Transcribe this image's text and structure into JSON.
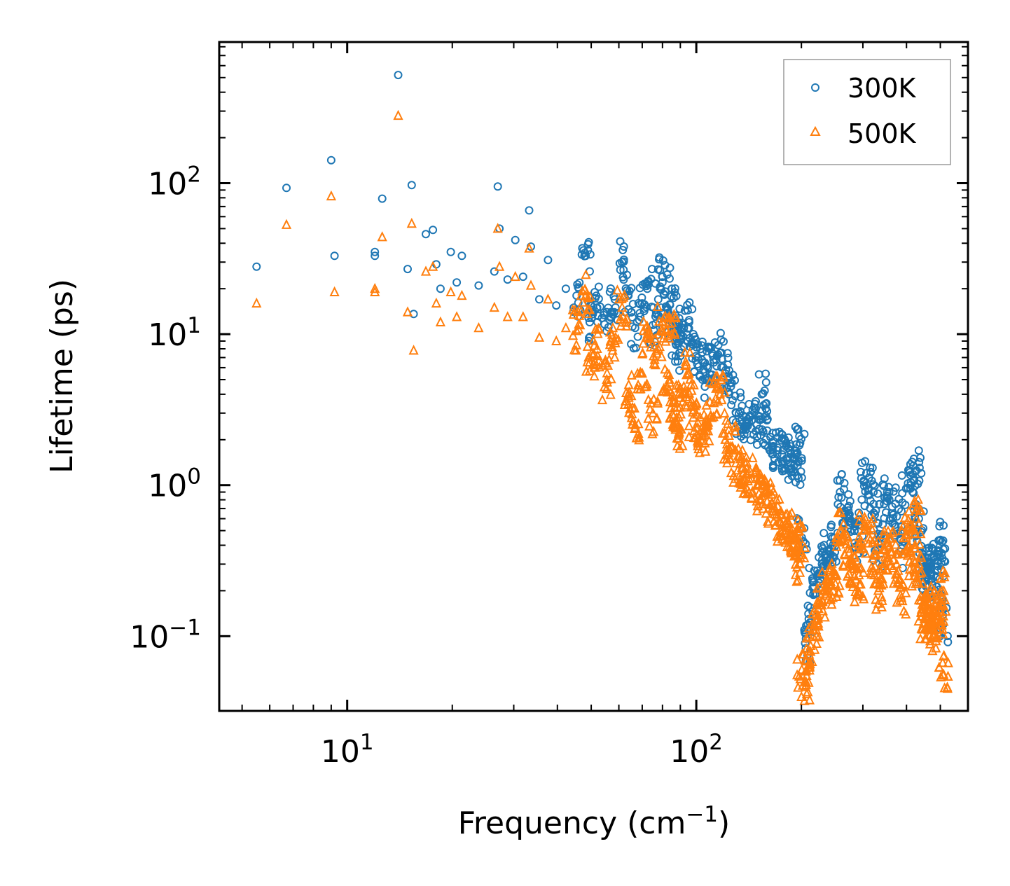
{
  "chart_data": {
    "type": "scatter",
    "title": "",
    "xlabel": "Frequency (cm",
    "xlabel_sup": "−1",
    "xlabel_suffix": ")",
    "ylabel": "Lifetime (ps)",
    "xscale": "log",
    "yscale": "log",
    "xlim": [
      4.3,
      600
    ],
    "ylim": [
      0.032,
      860
    ],
    "legend_position": "top-right",
    "x_ticks": [
      {
        "value": 10,
        "base": "10",
        "exp": "1"
      },
      {
        "value": 100,
        "base": "10",
        "exp": "2"
      }
    ],
    "y_ticks": [
      {
        "value": 0.1,
        "base": "10",
        "exp": "−1"
      },
      {
        "value": 1,
        "base": "10",
        "exp": "0"
      },
      {
        "value": 10,
        "base": "10",
        "exp": "1"
      },
      {
        "value": 100,
        "base": "10",
        "exp": "2"
      }
    ],
    "series": [
      {
        "name": "300K",
        "color": "#1f77b4",
        "marker": "circle",
        "x": [
          5.5,
          6.7,
          9.0,
          9.2,
          12.0,
          12.0,
          12.6,
          14.0,
          14.9,
          15.3,
          15.5,
          16.8,
          17.6,
          18.0,
          18.5,
          19.8,
          20.6,
          21.3,
          23.8,
          26.4,
          27.0,
          27.3,
          28.8,
          30.3,
          31.9,
          33.2,
          33.6,
          35.5,
          37.6,
          39.7,
          42.3,
          45.4,
          48.2,
          49.5,
          52.0,
          55.4,
          58.4,
          61.3,
          63.9,
          66.8,
          70.0,
          72.4,
          75.1,
          77.8,
          80.0,
          82.4,
          85.0,
          86.3,
          87.8,
          89.6,
          92.1,
          95.4,
          98.0,
          101.0,
          104.2,
          108.0,
          112.4,
          117.0,
          121.0,
          125.6,
          130.0,
          135.0,
          139.4,
          144.0,
          149.0,
          154.0,
          159.5,
          165.0,
          171.0,
          176.0,
          181.0,
          186.0,
          190.5,
          195.0,
          198.4,
          200.5,
          205.0,
          210.0,
          216.0,
          222.0,
          229.0,
          236.0,
          243.0,
          250.0,
          258.0,
          266.0,
          275.0,
          284.0,
          293.0,
          302.0,
          312.0,
          322.0,
          332.0,
          342.0,
          353.0,
          364.0,
          375.0,
          387.0,
          399.0,
          411.0,
          420.0,
          427.0,
          434.0,
          442.0,
          450.0,
          458.0,
          466.0,
          474.0,
          482.0,
          490.0,
          498.0,
          505.0,
          510.0
        ],
        "y": [
          28.0,
          93.0,
          142.0,
          33.0,
          35.0,
          33.0,
          79.0,
          520.0,
          27.0,
          97.0,
          13.6,
          46.0,
          49.0,
          29.0,
          20.0,
          35.0,
          22.0,
          33.0,
          21.0,
          26.0,
          95.0,
          50.0,
          23.0,
          42.0,
          24.0,
          66.0,
          38.0,
          17.0,
          31.0,
          15.5,
          20.0,
          18.0,
          33.0,
          12.0,
          15.0,
          14.0,
          17.0,
          30.0,
          18.0,
          11.0,
          16.0,
          20.0,
          11.5,
          17.0,
          24.0,
          15.0,
          20.0,
          10.5,
          9.0,
          7.5,
          11.0,
          12.0,
          8.5,
          7.0,
          5.0,
          6.0,
          6.5,
          7.5,
          5.5,
          4.5,
          3.0,
          2.7,
          2.6,
          2.7,
          2.5,
          4.0,
          2.3,
          1.8,
          1.7,
          1.6,
          1.5,
          1.4,
          1.35,
          1.35,
          1.9,
          0.45,
          0.09,
          0.13,
          0.21,
          0.25,
          0.3,
          0.35,
          0.38,
          0.42,
          0.9,
          0.65,
          0.6,
          0.5,
          0.42,
          1.05,
          0.95,
          0.75,
          0.38,
          0.55,
          0.82,
          0.72,
          0.62,
          0.38,
          0.95,
          1.0,
          0.55,
          1.25,
          0.6,
          0.3,
          0.26,
          0.28,
          0.3,
          0.22,
          0.32,
          0.27,
          0.24,
          0.42,
          0.12
        ]
      },
      {
        "name": "500K",
        "color": "#ff7f0e",
        "marker": "triangle",
        "x": [
          5.5,
          6.7,
          9.0,
          9.2,
          12.0,
          12.0,
          12.6,
          14.0,
          14.9,
          15.3,
          15.5,
          16.8,
          17.6,
          18.0,
          18.5,
          19.8,
          20.6,
          21.3,
          23.8,
          26.4,
          27.0,
          27.3,
          28.8,
          30.3,
          31.9,
          33.2,
          33.6,
          35.5,
          37.6,
          39.7,
          42.3,
          45.4,
          48.2,
          49.5,
          52.0,
          55.4,
          58.4,
          61.3,
          63.9,
          66.8,
          70.0,
          72.4,
          75.1,
          77.8,
          80.0,
          82.4,
          85.0,
          86.3,
          87.8,
          89.6,
          92.1,
          95.4,
          98.0,
          101.0,
          104.2,
          108.0,
          112.4,
          117.0,
          121.0,
          125.6,
          130.0,
          135.0,
          139.4,
          144.0,
          149.0,
          154.0,
          159.5,
          165.0,
          171.0,
          176.0,
          181.0,
          186.0,
          190.5,
          195.0,
          198.4,
          200.5,
          205.0,
          210.0,
          216.0,
          222.0,
          229.0,
          236.0,
          243.0,
          250.0,
          258.0,
          266.0,
          275.0,
          284.0,
          293.0,
          302.0,
          312.0,
          322.0,
          332.0,
          342.0,
          353.0,
          364.0,
          375.0,
          387.0,
          399.0,
          411.0,
          420.0,
          427.0,
          434.0,
          442.0,
          450.0,
          458.0,
          466.0,
          474.0,
          482.0,
          490.0,
          498.0,
          505.0,
          510.0
        ],
        "y": [
          16.0,
          53.0,
          82.0,
          19.0,
          20.0,
          19.0,
          44.0,
          280.0,
          14.0,
          54.0,
          7.8,
          26.0,
          28.0,
          16.0,
          12.0,
          19.0,
          13.0,
          18.0,
          11.0,
          15.0,
          50.0,
          28.0,
          13.0,
          24.0,
          13.0,
          37.0,
          21.0,
          9.5,
          17.0,
          9.0,
          11.0,
          10.5,
          18.0,
          6.5,
          8.0,
          5.0,
          9.0,
          15.0,
          4.0,
          2.5,
          5.5,
          9.5,
          3.0,
          8.0,
          12.0,
          4.5,
          10.0,
          3.5,
          2.8,
          2.4,
          4.5,
          5.5,
          2.8,
          2.6,
          2.2,
          2.5,
          3.5,
          4.0,
          2.0,
          1.8,
          1.4,
          1.3,
          1.2,
          1.1,
          1.0,
          0.85,
          0.78,
          0.7,
          0.62,
          0.55,
          0.5,
          0.48,
          0.45,
          0.4,
          0.3,
          0.06,
          0.05,
          0.08,
          0.11,
          0.13,
          0.16,
          0.2,
          0.22,
          0.25,
          0.5,
          0.35,
          0.3,
          0.25,
          0.22,
          0.5,
          0.45,
          0.35,
          0.2,
          0.28,
          0.4,
          0.36,
          0.3,
          0.18,
          0.45,
          0.5,
          0.28,
          0.6,
          0.3,
          0.15,
          0.13,
          0.14,
          0.15,
          0.11,
          0.16,
          0.13,
          0.12,
          0.2,
          0.055
        ]
      }
    ]
  }
}
